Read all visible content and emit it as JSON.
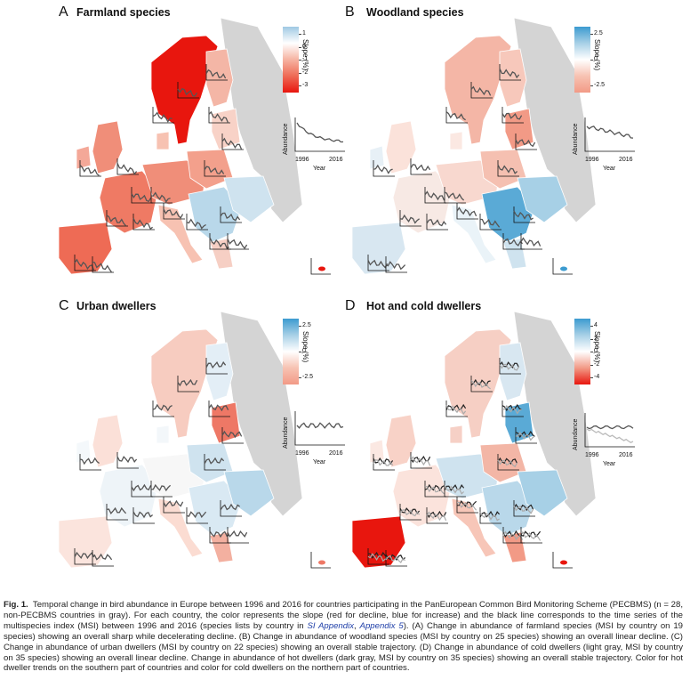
{
  "panels": [
    {
      "letter": "A",
      "title": "Farmland species",
      "legend": {
        "label": "Slope (%)",
        "ticks": [
          "1",
          "0",
          "-1",
          "-2",
          "-3"
        ],
        "gradient": [
          "#9fc9e3",
          "#ffffff",
          "#f6b3a2",
          "#ee6a55",
          "#e8160e"
        ]
      },
      "inset": {
        "ylabel": "Abundance",
        "xlabel": "Year",
        "x_start": "1996",
        "x_end": "2016",
        "trend": "decline"
      },
      "highlight_color": "#e8160e"
    },
    {
      "letter": "B",
      "title": "Woodland species",
      "legend": {
        "label": "Slope (%)",
        "ticks": [
          "2.5",
          "0",
          "-2.5"
        ],
        "gradient": [
          "#3c9bd0",
          "#a7d0e6",
          "#ffffff",
          "#f7c2b2",
          "#f29a86"
        ]
      },
      "inset": {
        "ylabel": "Abundance",
        "xlabel": "Year",
        "x_start": "1996",
        "x_end": "2016",
        "trend": "linear-decline"
      },
      "highlight_color": "#3c9bd0"
    },
    {
      "letter": "C",
      "title": "Urban dwellers",
      "legend": {
        "label": "Slope (%)",
        "ticks": [
          "2.5",
          "0",
          "-2.5"
        ],
        "gradient": [
          "#3c9bd0",
          "#a7d0e6",
          "#ffffff",
          "#f7c2b2",
          "#f29a86"
        ]
      },
      "inset": {
        "ylabel": "Abundance",
        "xlabel": "Year",
        "x_start": "1996",
        "x_end": "2016",
        "trend": "stable"
      },
      "highlight_color": "#ee7866"
    },
    {
      "letter": "D",
      "title": "Hot and cold dwellers",
      "legend": {
        "label": "Slope (%)",
        "ticks": [
          "4",
          "2",
          "0",
          "-2",
          "-4"
        ],
        "gradient": [
          "#3c9bd0",
          "#a7d0e6",
          "#ffffff",
          "#f29a86",
          "#e8160e"
        ]
      },
      "inset": {
        "ylabel": "Abundance",
        "xlabel": "Year",
        "x_start": "1996",
        "x_end": "2016",
        "trend": "dual"
      },
      "highlight_color": "#e8160e"
    }
  ],
  "caption": {
    "label": "Fig. 1.",
    "part1": "Temporal change in bird abundance in Europe between 1996 and 2016 for countries participating in the PanEuropean Common Bird Monitoring Scheme (PECBMS) (n = 28, non-PECBMS countries in gray). For each country, the color represents the slope (red for decline, blue for increase) and the black line corresponds to the time series of the multispecies index (MSI) between 1996 and 2016 (species lists by country in ",
    "link1": "SI Appendix",
    "sep": ", ",
    "link2": "Appendix 5",
    "part2": "). (A) Change in abundance of farmland species (MSI by country on 19 species) showing an overall sharp while decelerating decline. (B) Change in abundance of woodland species (MSI by country on 25 species) showing an overall linear decline. (C) Change in abundance of urban dwellers (MSI by country on 22 species) showing an overall stable trajectory. (D) Change in abundance of cold dwellers (light gray, MSI by country on 35 species) showing an overall linear decline. Change in abundance of hot dwellers (dark gray, MSI by country on 35 species) showing an overall stable trajectory. Color for hot dweller trends on the southern part of countries and color for cold dwellers on the northern part of countries."
  }
}
